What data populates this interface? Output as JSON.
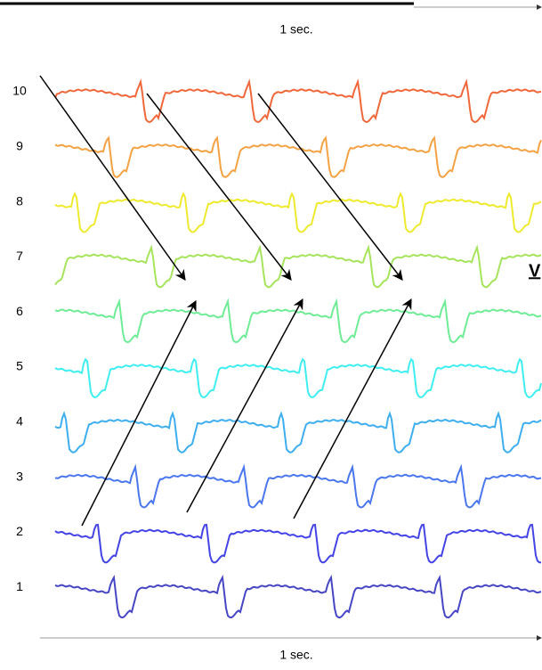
{
  "scale_top": "1 sec.",
  "scale_bottom": "1 sec.",
  "channels": [
    "10",
    "9",
    "8",
    "7",
    "6",
    "5",
    "4",
    "3",
    "2",
    "1"
  ],
  "side_label": "V"
}
